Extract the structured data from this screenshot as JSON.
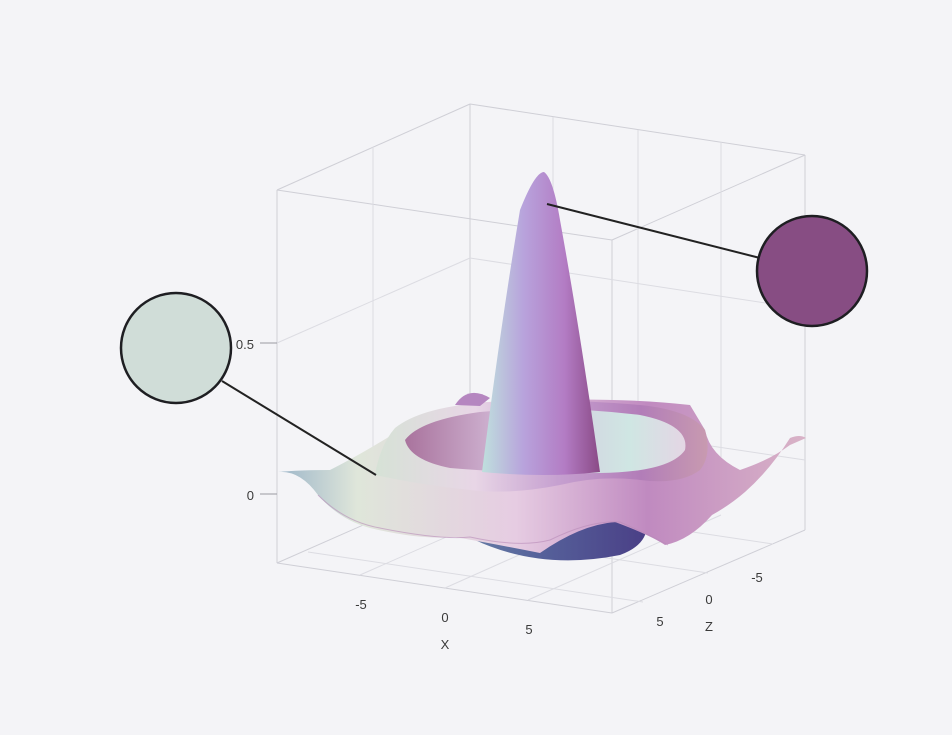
{
  "chart_data": {
    "type": "surface3d",
    "function": "sinc ring surface (radial sin(r)/r-like)",
    "x_axis": {
      "label": "X",
      "ticks": [
        "-5",
        "0",
        "5"
      ]
    },
    "z_axis": {
      "label": "Z",
      "ticks": [
        "5",
        "0",
        "-5"
      ]
    },
    "y_axis": {
      "label": "",
      "ticks": [
        "0",
        "0.5"
      ]
    },
    "xlim": [
      -10,
      10
    ],
    "zlim": [
      -10,
      10
    ],
    "ylim": [
      -0.2,
      1.0
    ],
    "colormap": [
      "#c9d9d2",
      "#b9a7d8",
      "#c99ad1",
      "#8b4d86",
      "#4a4f8a"
    ],
    "callouts": [
      {
        "color": "#d0ddd8"
      },
      {
        "color": "#874d83"
      }
    ],
    "grid": true
  }
}
